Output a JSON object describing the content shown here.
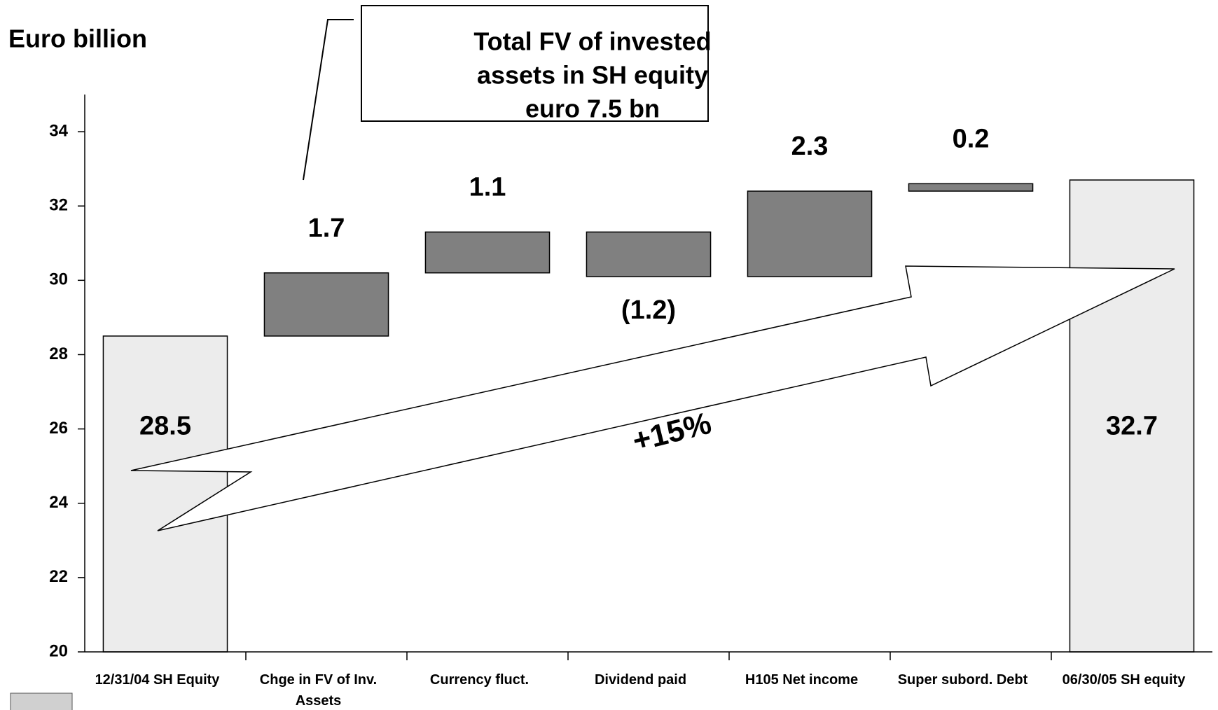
{
  "chart_data": {
    "type": "waterfall",
    "y_axis_label": "Euro billion",
    "categories": [
      "12/31/04 SH Equity",
      "Chge in FV of Inv. Assets",
      "Currency fluct.",
      "Dividend paid",
      "H105 Net income",
      "Super subord. Debt",
      "06/30/05 SH equity"
    ],
    "values": [
      28.5,
      1.7,
      1.1,
      -1.2,
      2.3,
      0.2,
      32.7
    ],
    "value_labels": [
      "28.5",
      "1.7",
      "1.1",
      "(1.2)",
      "2.3",
      "0.2",
      "32.7"
    ],
    "total_color": "#ececec",
    "delta_color": "#808080",
    "ylim": [
      20,
      35
    ],
    "yticks": [
      20,
      22,
      24,
      26,
      28,
      30,
      32,
      34
    ],
    "callout": [
      "Total FV of invested",
      "assets in SH equity",
      "euro 7.5 bn"
    ],
    "arrow_label": "+15%"
  }
}
